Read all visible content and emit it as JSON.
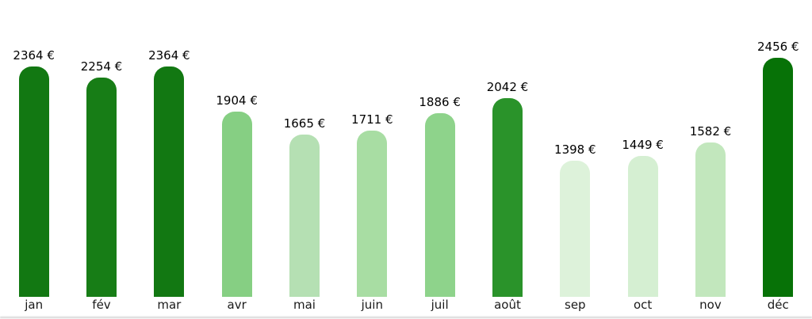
{
  "chart_data": {
    "type": "bar",
    "title": "",
    "xlabel": "",
    "ylabel": "",
    "unit": "€",
    "categories": [
      "jan",
      "fév",
      "mar",
      "avr",
      "mai",
      "juin",
      "juil",
      "août",
      "sep",
      "oct",
      "nov",
      "déc"
    ],
    "values": [
      2364,
      2254,
      2364,
      1904,
      1665,
      1711,
      1886,
      2042,
      1398,
      1449,
      1582,
      2456
    ],
    "value_labels": [
      "2364 €",
      "2254 €",
      "2364 €",
      "1904 €",
      "1665 €",
      "1711 €",
      "1886 €",
      "2042 €",
      "1398 €",
      "1449 €",
      "1582 €",
      "2456 €"
    ],
    "bar_colors": [
      "#127812",
      "#177d16",
      "#127812",
      "#86cf83",
      "#b5e0b3",
      "#a8dda3",
      "#8ed38b",
      "#2a932a",
      "#ddf2da",
      "#d5efd2",
      "#c2e7bd",
      "#077207"
    ],
    "ylim": [
      0,
      2456
    ],
    "grid": false,
    "legend": null,
    "background": "#ffffff",
    "value_label_color": "#000000",
    "tick_label_color": "#1a1a1a"
  }
}
